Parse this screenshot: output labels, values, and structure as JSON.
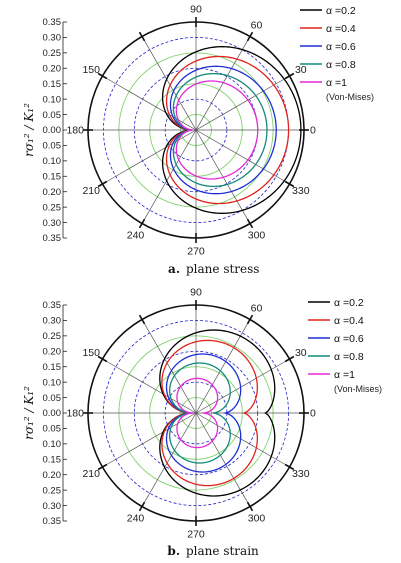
{
  "figure": {
    "y_axis_label": "rσ₁² / K₁²",
    "y_ticks": [
      "0.35",
      "0.30",
      "0.25",
      "0.20",
      "0.15",
      "0.10",
      "0.05",
      "0.00",
      "0.05",
      "0.10",
      "0.15",
      "0.20",
      "0.25",
      "0.30",
      "0.35"
    ],
    "angle_labels": [
      "0",
      "30",
      "60",
      "90",
      "150",
      "180",
      "210",
      "240",
      "270",
      "300",
      "330"
    ]
  },
  "chart_data": [
    {
      "type": "line",
      "polar": true,
      "caption_letter": "a.",
      "caption_text": "plane stress",
      "r_range": [
        0,
        0.35
      ],
      "series": [
        {
          "name": "α =0.2",
          "color": "#000000",
          "r_max": 0.34
        },
        {
          "name": "α =0.4",
          "color": "#e0231c",
          "r_max": 0.3
        },
        {
          "name": "α =0.6",
          "color": "#1f2fd6",
          "r_max": 0.26
        },
        {
          "name": "α =0.8",
          "color": "#138a7a",
          "r_max": 0.23
        },
        {
          "name": "α =1",
          "color": "#e62ad8",
          "r_max": 0.2,
          "note": "(Von-Mises)"
        }
      ]
    },
    {
      "type": "line",
      "polar": true,
      "caption_letter": "b.",
      "caption_text": "plane strain",
      "r_range": [
        0,
        0.35
      ],
      "series": [
        {
          "name": "α =0.2",
          "color": "#000000",
          "r_max": 0.33
        },
        {
          "name": "α =0.4",
          "color": "#e0231c",
          "r_max": 0.28
        },
        {
          "name": "α =0.6",
          "color": "#1f2fd6",
          "r_max": 0.22
        },
        {
          "name": "α =0.8",
          "color": "#138a7a",
          "r_max": 0.18
        },
        {
          "name": "α =1",
          "color": "#e62ad8",
          "r_max": 0.12,
          "note": "(Von-Mises)"
        }
      ]
    }
  ]
}
